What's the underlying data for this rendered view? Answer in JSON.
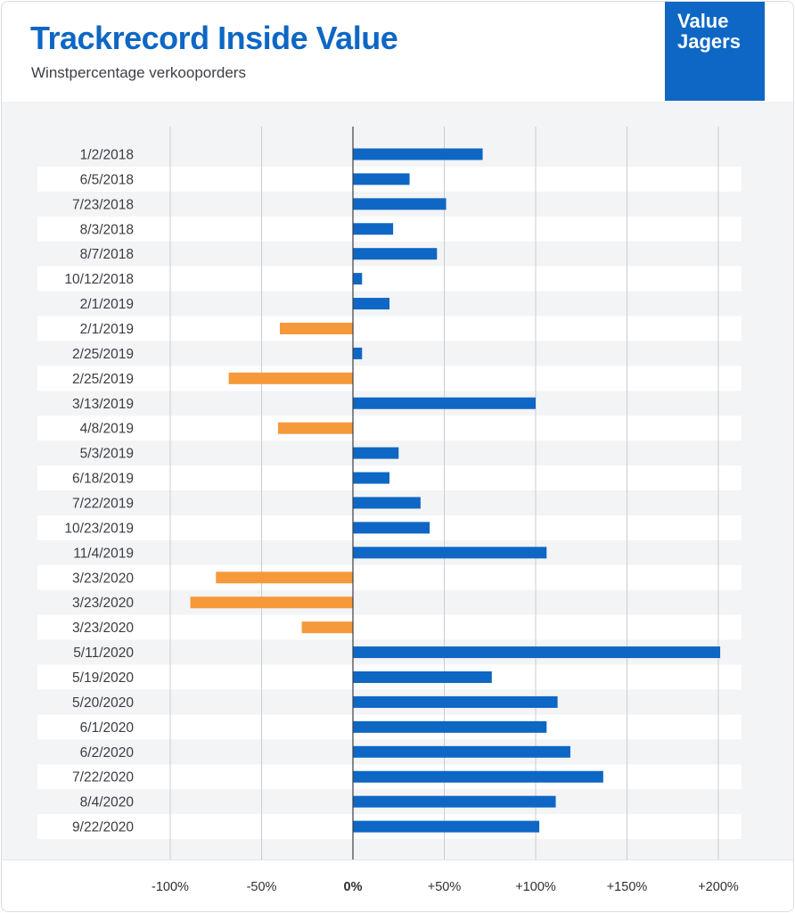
{
  "header": {
    "title": "Trackrecord Inside Value",
    "subtitle": "Winstpercentage verkooporders"
  },
  "logo": {
    "line1": "Value",
    "line2": "Jagers"
  },
  "colors": {
    "positive": "#0e67c4",
    "negative": "#f5993a",
    "title": "#0e67c4"
  },
  "chart_data": {
    "type": "bar",
    "orientation": "horizontal",
    "title": "Trackrecord Inside Value",
    "subtitle": "Winstpercentage verkooporders",
    "xlim": [
      -100,
      200
    ],
    "x_ticks": [
      -100,
      -50,
      0,
      50,
      100,
      150,
      200
    ],
    "x_tick_labels": [
      "-100%",
      "-50%",
      "0%",
      "+50%",
      "+100%",
      "+150%",
      "+200%"
    ],
    "grid": true,
    "categories": [
      "1/2/2018",
      "6/5/2018",
      "7/23/2018",
      "8/3/2018",
      "8/7/2018",
      "10/12/2018",
      "2/1/2019",
      "2/1/2019",
      "2/25/2019",
      "2/25/2019",
      "3/13/2019",
      "4/8/2019",
      "5/3/2019",
      "6/18/2019",
      "7/22/2019",
      "10/23/2019",
      "11/4/2019",
      "3/23/2020",
      "3/23/2020",
      "3/23/2020",
      "5/11/2020",
      "5/19/2020",
      "5/20/2020",
      "6/1/2020",
      "6/2/2020",
      "7/22/2020",
      "8/4/2020",
      "9/22/2020"
    ],
    "values": [
      71,
      31,
      51,
      22,
      46,
      5,
      20,
      -40,
      5,
      -68,
      100,
      -41,
      25,
      20,
      37,
      42,
      106,
      -75,
      -89,
      -28,
      201,
      76,
      112,
      106,
      119,
      137,
      111,
      102
    ]
  }
}
